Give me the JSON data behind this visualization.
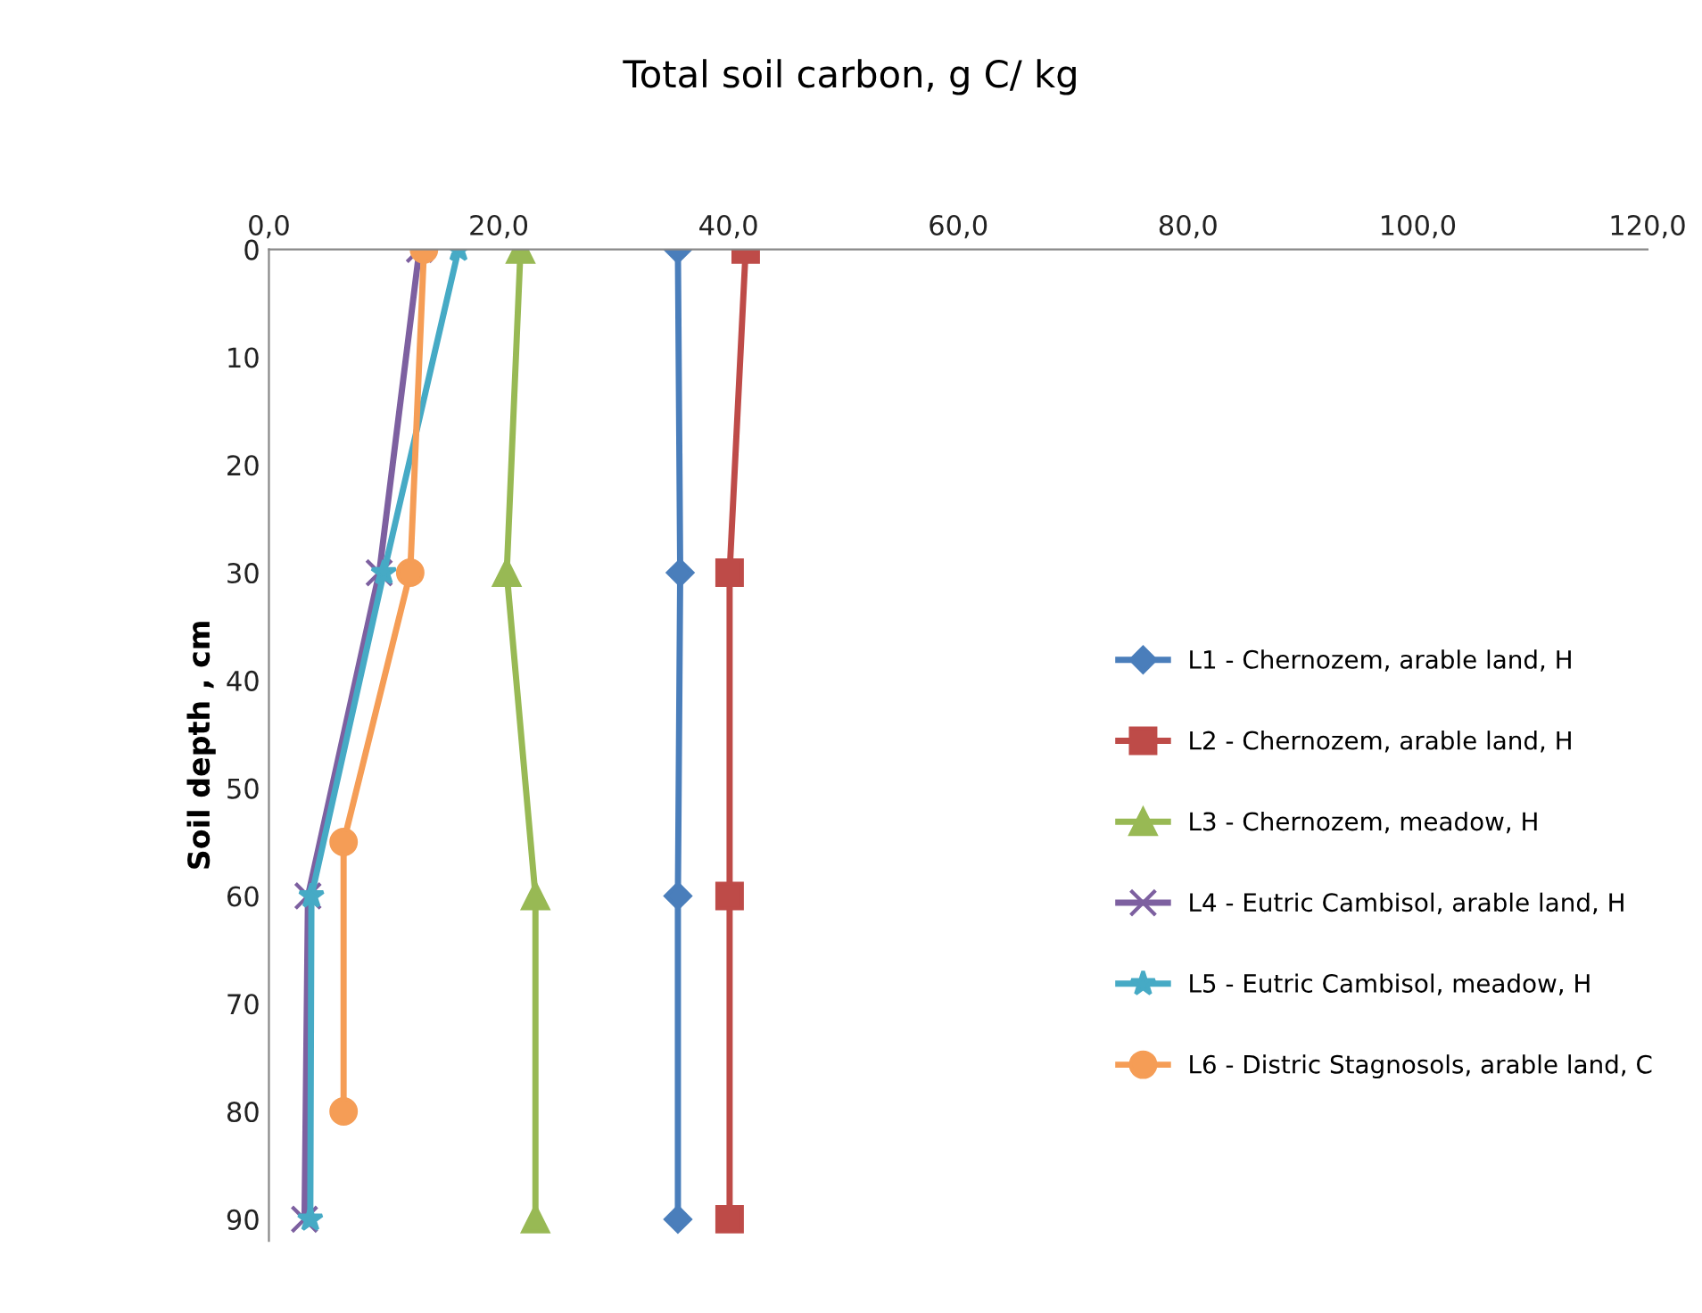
{
  "chart_data": {
    "type": "line",
    "title": "Total soil carbon, g C/ kg",
    "ylabel": "Soil depth , cm",
    "xlim": [
      0,
      120
    ],
    "xticks": [
      {
        "value": 0,
        "label": "0,0"
      },
      {
        "value": 20,
        "label": "20,0"
      },
      {
        "value": 40,
        "label": "40,0"
      },
      {
        "value": 60,
        "label": "60,0"
      },
      {
        "value": 80,
        "label": "80,0"
      },
      {
        "value": 100,
        "label": "100,0"
      },
      {
        "value": 120,
        "label": "120,0"
      }
    ],
    "ylim": [
      92,
      0
    ],
    "yticks": [
      0,
      10,
      20,
      30,
      40,
      50,
      60,
      70,
      80,
      90
    ],
    "grid": false,
    "legend": "right",
    "series": [
      {
        "name": "L1 - Chernozem, arable land, H",
        "color": "#4a7ebb",
        "marker": "diamond",
        "x": [
          35.6,
          35.8,
          35.6,
          35.6
        ],
        "values": [
          0,
          30,
          60,
          90
        ]
      },
      {
        "name": "L2 - Chernozem, arable land, H",
        "color": "#be4b48",
        "marker": "square",
        "x": [
          41.5,
          40.1,
          40.1,
          40.1
        ],
        "values": [
          0,
          30,
          60,
          90
        ]
      },
      {
        "name": "L3 - Chernozem, meadow, H",
        "color": "#98b954",
        "marker": "triangle",
        "x": [
          21.9,
          20.7,
          23.2,
          23.2
        ],
        "values": [
          0,
          30,
          60,
          90
        ]
      },
      {
        "name": "L4 - Eutric Cambisol, arable land, H",
        "color": "#7d60a0",
        "marker": "cross",
        "x": [
          13.1,
          9.6,
          3.4,
          3.1
        ],
        "values": [
          0,
          30,
          60,
          90
        ]
      },
      {
        "name": "L5 - Eutric Cambisol, meadow, H",
        "color": "#46aac5",
        "marker": "star",
        "x": [
          16.5,
          10.0,
          3.7,
          3.6
        ],
        "values": [
          0,
          30,
          60,
          90
        ]
      },
      {
        "name": "L6 - Distric Stagnosols, arable land, C",
        "color": "#f59d56",
        "marker": "circle",
        "x": [
          13.5,
          12.3,
          6.5,
          6.5
        ],
        "values": [
          0,
          30,
          55,
          80
        ]
      }
    ]
  }
}
